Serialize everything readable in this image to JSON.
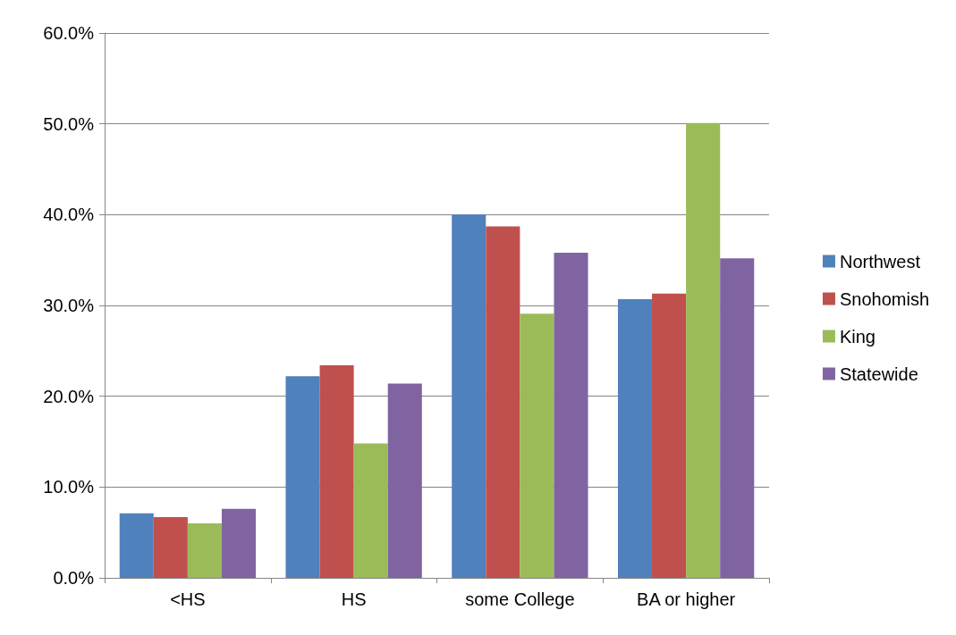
{
  "chart_data": {
    "type": "bar",
    "categories": [
      "<HS",
      "HS",
      "some College",
      "BA or higher"
    ],
    "series": [
      {
        "name": "Northwest",
        "color": "#4f81bd",
        "values": [
          7.1,
          22.2,
          40.0,
          30.7
        ]
      },
      {
        "name": "Snohomish",
        "color": "#c0504d",
        "values": [
          6.7,
          23.4,
          38.7,
          31.3
        ]
      },
      {
        "name": "King",
        "color": "#9bbb59",
        "values": [
          6.0,
          14.8,
          29.1,
          50.1
        ]
      },
      {
        "name": "Statewide",
        "color": "#8064a2",
        "values": [
          7.6,
          21.4,
          35.8,
          35.2
        ]
      }
    ],
    "ylim": [
      0,
      60
    ],
    "yticks": [
      {
        "value": 0,
        "label": "0.0%"
      },
      {
        "value": 10,
        "label": "10.0%"
      },
      {
        "value": 20,
        "label": "20.0%"
      },
      {
        "value": 30,
        "label": "30.0%"
      },
      {
        "value": 40,
        "label": "40.0%"
      },
      {
        "value": 50,
        "label": "50.0%"
      },
      {
        "value": 60,
        "label": "60.0%"
      }
    ],
    "grid": "y",
    "legend": "right"
  }
}
